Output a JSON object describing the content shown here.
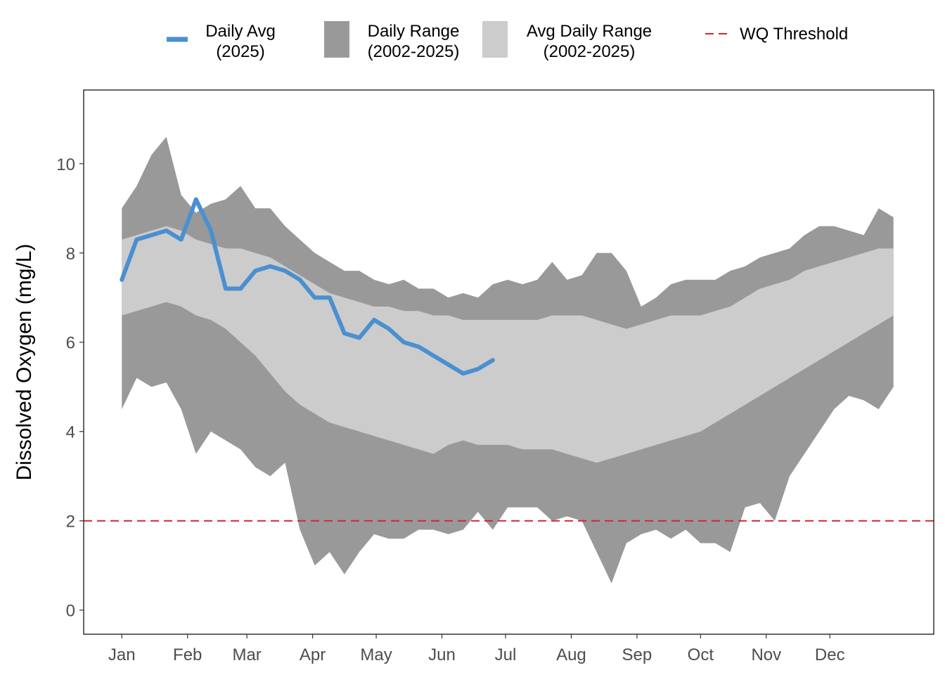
{
  "chart_data": {
    "type": "line",
    "ylabel": "Dissolved Oxygen (mg/L)",
    "xlim": [
      -17,
      384
    ],
    "ylim": [
      -0.54,
      11.65
    ],
    "yticks": [
      0,
      2,
      4,
      6,
      8,
      10
    ],
    "xticks": [
      {
        "value": 1,
        "label": "Jan"
      },
      {
        "value": 32,
        "label": "Feb"
      },
      {
        "value": 60,
        "label": "Mar"
      },
      {
        "value": 91,
        "label": "Apr"
      },
      {
        "value": 121,
        "label": "May"
      },
      {
        "value": 152,
        "label": "Jun"
      },
      {
        "value": 182,
        "label": "Jul"
      },
      {
        "value": 213,
        "label": "Aug"
      },
      {
        "value": 244,
        "label": "Sep"
      },
      {
        "value": 274,
        "label": "Oct"
      },
      {
        "value": 305,
        "label": "Nov"
      },
      {
        "value": 335,
        "label": "Dec"
      }
    ],
    "x": [
      1,
      8,
      15,
      22,
      29,
      36,
      43,
      50,
      57,
      64,
      71,
      78,
      85,
      92,
      99,
      106,
      113,
      120,
      127,
      134,
      141,
      148,
      155,
      162,
      169,
      176,
      183,
      190,
      197,
      204,
      211,
      218,
      225,
      232,
      239,
      246,
      253,
      260,
      267,
      274,
      281,
      288,
      295,
      302,
      309,
      316,
      323,
      330,
      337,
      344,
      351,
      358,
      365
    ],
    "series": [
      {
        "name": "Daily Range\n(2002-2025)",
        "type": "band",
        "color": "#999999",
        "high": [
          9.0,
          9.5,
          10.2,
          10.6,
          9.3,
          8.9,
          9.1,
          9.2,
          9.5,
          9.0,
          9.0,
          8.6,
          8.3,
          8.0,
          7.8,
          7.6,
          7.6,
          7.4,
          7.3,
          7.4,
          7.2,
          7.2,
          7.0,
          7.1,
          7.0,
          7.3,
          7.4,
          7.3,
          7.4,
          7.8,
          7.4,
          7.5,
          8.0,
          8.0,
          7.6,
          6.8,
          7.0,
          7.3,
          7.4,
          7.4,
          7.4,
          7.6,
          7.7,
          7.9,
          8.0,
          8.1,
          8.4,
          8.6,
          8.6,
          8.5,
          8.4,
          9.0,
          8.8
        ],
        "low": [
          4.5,
          5.2,
          5.0,
          5.1,
          4.5,
          3.5,
          4.0,
          3.8,
          3.6,
          3.2,
          3.0,
          3.3,
          1.8,
          1.0,
          1.3,
          0.8,
          1.3,
          1.7,
          1.6,
          1.6,
          1.8,
          1.8,
          1.7,
          1.8,
          2.2,
          1.8,
          2.3,
          2.3,
          2.3,
          2.0,
          2.1,
          2.0,
          1.3,
          0.6,
          1.5,
          1.7,
          1.8,
          1.6,
          1.8,
          1.5,
          1.5,
          1.3,
          2.3,
          2.4,
          2.0,
          3.0,
          3.5,
          4.0,
          4.5,
          4.8,
          4.7,
          4.5,
          5.0
        ]
      },
      {
        "name": "Avg Daily Range\n(2002-2025)",
        "type": "band",
        "color": "#cccccc",
        "high": [
          8.3,
          8.4,
          8.5,
          8.6,
          8.5,
          8.3,
          8.2,
          8.1,
          8.1,
          8.0,
          7.9,
          7.7,
          7.5,
          7.3,
          7.1,
          7.0,
          6.9,
          6.8,
          6.8,
          6.7,
          6.7,
          6.6,
          6.6,
          6.5,
          6.5,
          6.5,
          6.5,
          6.5,
          6.5,
          6.6,
          6.6,
          6.6,
          6.5,
          6.4,
          6.3,
          6.4,
          6.5,
          6.6,
          6.6,
          6.6,
          6.7,
          6.8,
          7.0,
          7.2,
          7.3,
          7.4,
          7.6,
          7.7,
          7.8,
          7.9,
          8.0,
          8.1,
          8.1
        ],
        "low": [
          6.6,
          6.7,
          6.8,
          6.9,
          6.8,
          6.6,
          6.5,
          6.3,
          6.0,
          5.7,
          5.3,
          4.9,
          4.6,
          4.4,
          4.2,
          4.1,
          4.0,
          3.9,
          3.8,
          3.7,
          3.6,
          3.5,
          3.7,
          3.8,
          3.7,
          3.7,
          3.7,
          3.6,
          3.6,
          3.6,
          3.5,
          3.4,
          3.3,
          3.4,
          3.5,
          3.6,
          3.7,
          3.8,
          3.9,
          4.0,
          4.2,
          4.4,
          4.6,
          4.8,
          5.0,
          5.2,
          5.4,
          5.6,
          5.8,
          6.0,
          6.2,
          6.4,
          6.6
        ]
      },
      {
        "name": "Daily Avg\n(2025)",
        "type": "line",
        "color": "#4a90d0",
        "values": [
          7.4,
          8.3,
          8.4,
          8.5,
          8.3,
          9.2,
          8.5,
          7.2,
          7.2,
          7.6,
          7.7,
          7.6,
          7.4,
          7.0,
          7.0,
          6.2,
          6.1,
          6.5,
          6.3,
          6.0,
          5.9,
          5.7,
          5.5,
          5.3,
          5.4,
          5.6,
          null,
          null,
          null,
          null,
          null,
          null,
          null,
          null,
          null,
          null,
          null,
          null,
          null,
          null,
          null,
          null,
          null,
          null,
          null,
          null,
          null,
          null,
          null,
          null,
          null,
          null,
          null
        ]
      },
      {
        "name": "WQ Threshold",
        "type": "hline",
        "color": "#d62728",
        "value": 2
      }
    ]
  }
}
